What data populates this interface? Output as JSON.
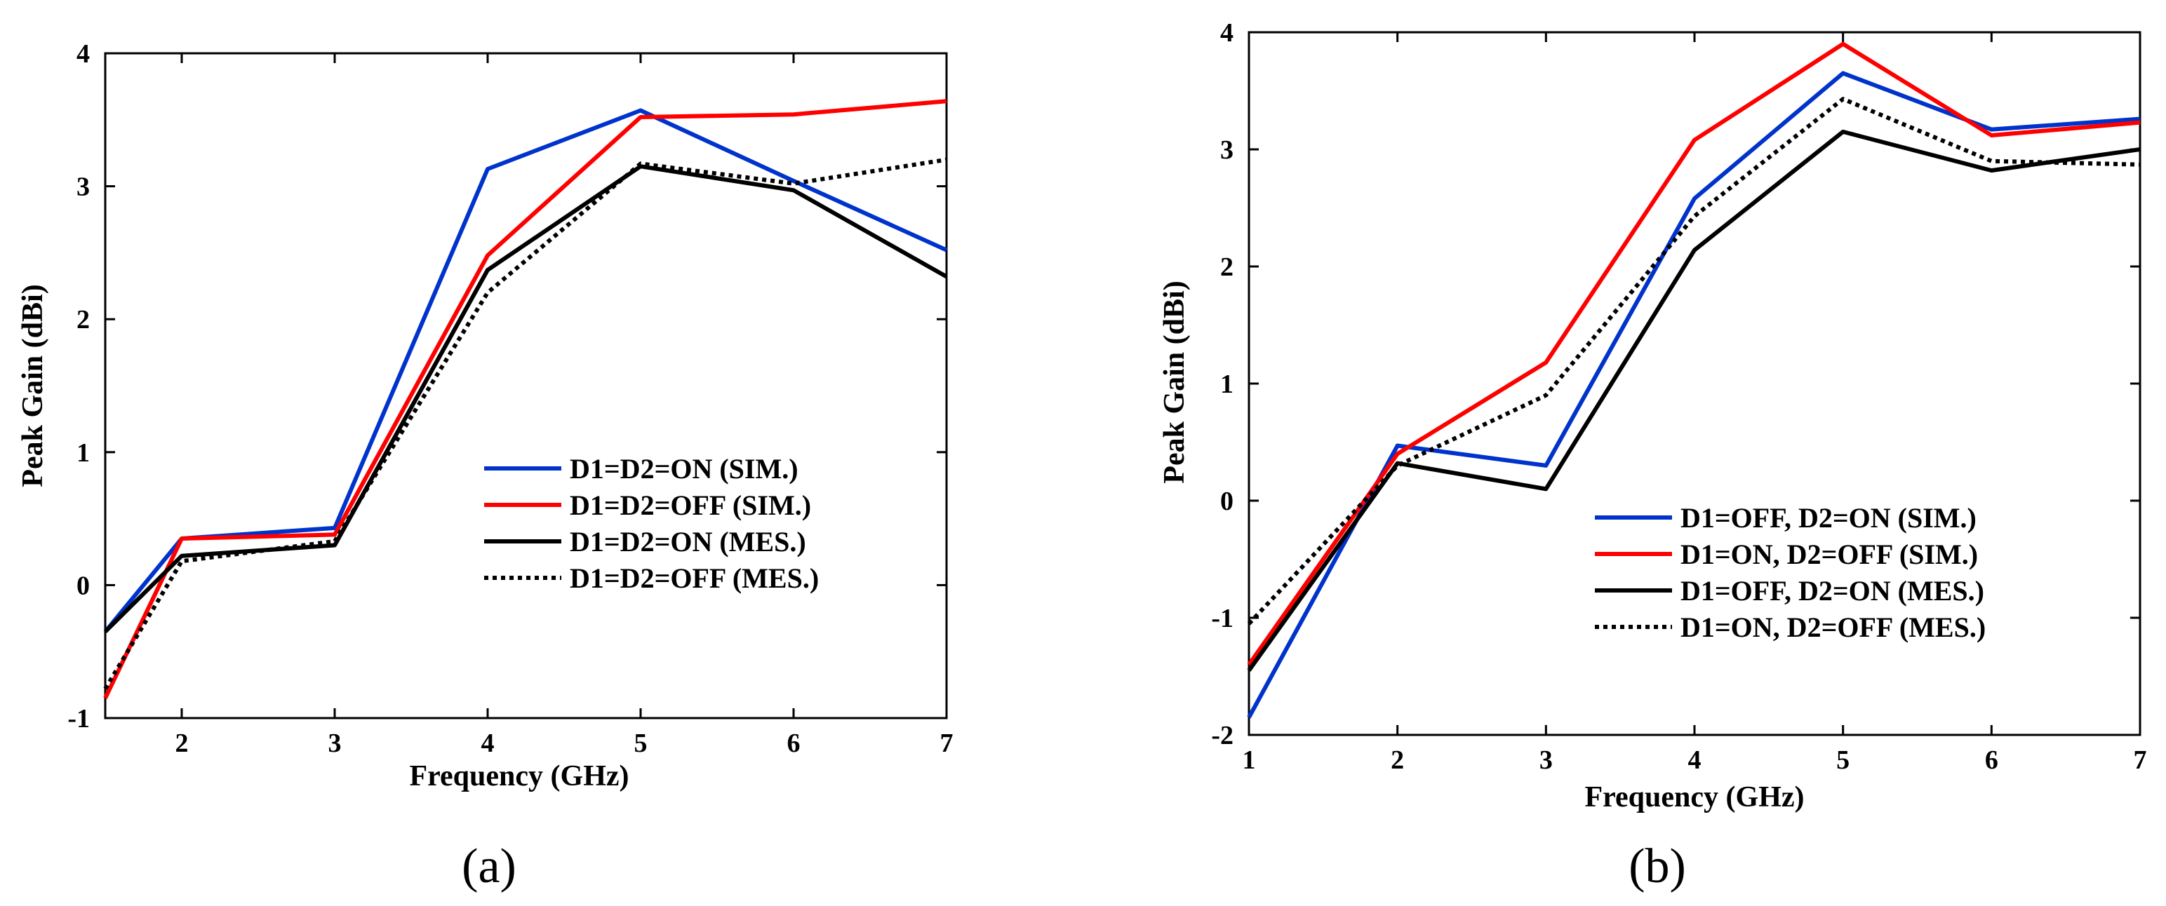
{
  "chart_data": [
    {
      "type": "line",
      "caption": "(a)",
      "xlabel": "Frequency (GHz)",
      "ylabel": "Peak Gain (dBi)",
      "xlim": [
        1.5,
        7
      ],
      "ylim": [
        -1,
        4
      ],
      "xticks": [
        2,
        3,
        4,
        5,
        6,
        7
      ],
      "yticks": [
        -1,
        0,
        1,
        2,
        3,
        4
      ],
      "grid": false,
      "legend_position": "center-right",
      "x": [
        1.5,
        2,
        3,
        4,
        5,
        6,
        7
      ],
      "series": [
        {
          "name": "D1=D2=ON (SIM.)",
          "color": "#0033cc",
          "style": "solid",
          "values": [
            -0.35,
            0.35,
            0.43,
            3.13,
            3.57,
            3.04,
            2.52
          ]
        },
        {
          "name": "D1=D2=OFF (SIM.)",
          "color": "#ff0000",
          "style": "solid",
          "values": [
            -0.85,
            0.35,
            0.38,
            2.48,
            3.52,
            3.54,
            3.64
          ]
        },
        {
          "name": "D1=D2=ON (MES.)",
          "color": "#000000",
          "style": "solid",
          "values": [
            -0.35,
            0.22,
            0.3,
            2.37,
            3.15,
            2.97,
            2.32
          ]
        },
        {
          "name": "D1=D2=OFF (MES.)",
          "color": "#000000",
          "style": "dotted",
          "values": [
            -0.78,
            0.18,
            0.33,
            2.2,
            3.17,
            3.02,
            3.2
          ]
        }
      ]
    },
    {
      "type": "line",
      "caption": "(b)",
      "xlabel": "Frequency (GHz)",
      "ylabel": "Peak Gain (dBi)",
      "xlim": [
        1,
        7
      ],
      "ylim": [
        -2,
        4
      ],
      "xticks": [
        1,
        2,
        3,
        4,
        5,
        6,
        7
      ],
      "yticks": [
        -2,
        -1,
        0,
        1,
        2,
        3,
        4
      ],
      "grid": false,
      "legend_position": "bottom-right",
      "x": [
        1,
        2,
        3,
        4,
        5,
        6,
        7
      ],
      "series": [
        {
          "name": "D1=OFF, D2=ON (SIM.)",
          "color": "#0033cc",
          "style": "solid",
          "values": [
            -1.85,
            0.47,
            0.3,
            2.58,
            3.65,
            3.17,
            3.26
          ]
        },
        {
          "name": "D1=ON, D2=OFF (SIM.)",
          "color": "#ff0000",
          "style": "solid",
          "values": [
            -1.4,
            0.4,
            1.18,
            3.08,
            3.9,
            3.12,
            3.23
          ]
        },
        {
          "name": "D1=OFF, D2=ON (MES.)",
          "color": "#000000",
          "style": "solid",
          "values": [
            -1.45,
            0.32,
            0.1,
            2.14,
            3.15,
            2.82,
            3.0
          ]
        },
        {
          "name": "D1=ON, D2=OFF (MES.)",
          "color": "#000000",
          "style": "dotted",
          "values": [
            -1.05,
            0.3,
            0.9,
            2.43,
            3.43,
            2.9,
            2.87
          ]
        }
      ]
    }
  ]
}
